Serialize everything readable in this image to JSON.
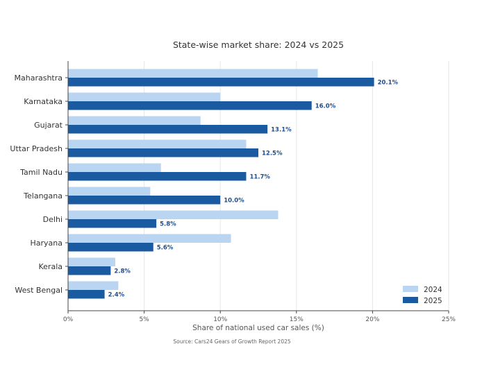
{
  "chart_data": {
    "type": "bar",
    "orientation": "horizontal",
    "title": "State-wise market share: 2024 vs 2025",
    "xlabel": "Share of national used car sales (%)",
    "ylabel": "",
    "source": "Source: Cars24 Gears of Growth Report 2025",
    "xlim": [
      0,
      25
    ],
    "xticks": [
      0,
      5,
      10,
      15,
      20,
      25
    ],
    "xtick_labels": [
      "0%",
      "5%",
      "10%",
      "15%",
      "20%",
      "25%"
    ],
    "grid": "vertical",
    "legend_position": "bottom-right",
    "categories": [
      "Maharashtra",
      "Karnataka",
      "Gujarat",
      "Uttar Pradesh",
      "Tamil Nadu",
      "Telangana",
      "Delhi",
      "Haryana",
      "Kerala",
      "West Bengal"
    ],
    "series": [
      {
        "name": "2024",
        "color": "#b9d5f2",
        "values": [
          16.4,
          10.0,
          8.7,
          11.7,
          6.1,
          5.4,
          13.8,
          10.7,
          3.1,
          3.3
        ]
      },
      {
        "name": "2025",
        "color": "#1a5aa0",
        "values": [
          20.1,
          16.0,
          13.1,
          12.5,
          11.7,
          10.0,
          5.8,
          5.6,
          2.8,
          2.4
        ],
        "data_labels": [
          "20.1%",
          "16.0%",
          "13.1%",
          "12.5%",
          "11.7%",
          "10.0%",
          "5.8%",
          "5.6%",
          "2.8%",
          "2.4%"
        ]
      }
    ]
  }
}
